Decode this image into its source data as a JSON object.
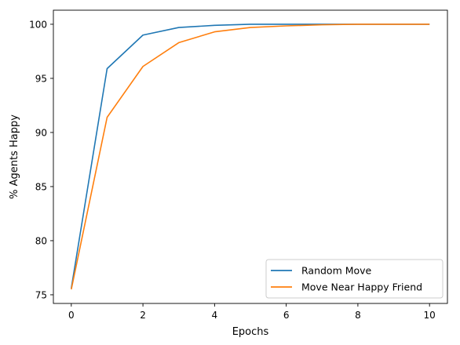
{
  "chart_data": {
    "type": "line",
    "xlabel": "Epochs",
    "ylabel": "% Agents Happy",
    "xlim": [
      -0.5,
      10.5
    ],
    "ylim": [
      74.2,
      101.3
    ],
    "xticks": [
      0,
      2,
      4,
      6,
      8,
      10
    ],
    "yticks": [
      75,
      80,
      85,
      90,
      95,
      100
    ],
    "grid": false,
    "legend_position": "lower-right",
    "x": [
      0,
      1,
      2,
      3,
      4,
      5,
      6,
      7,
      8,
      9,
      10
    ],
    "series": [
      {
        "name": "Random Move",
        "color": "#1f77b4",
        "values": [
          75.6,
          95.9,
          99.0,
          99.7,
          99.9,
          100.0,
          100.0,
          100.0,
          100.0,
          100.0,
          100.0
        ]
      },
      {
        "name": "Move Near Happy Friend",
        "color": "#ff7f0e",
        "values": [
          75.5,
          91.4,
          96.1,
          98.3,
          99.3,
          99.7,
          99.85,
          99.95,
          100.0,
          100.0,
          100.0
        ]
      }
    ]
  }
}
